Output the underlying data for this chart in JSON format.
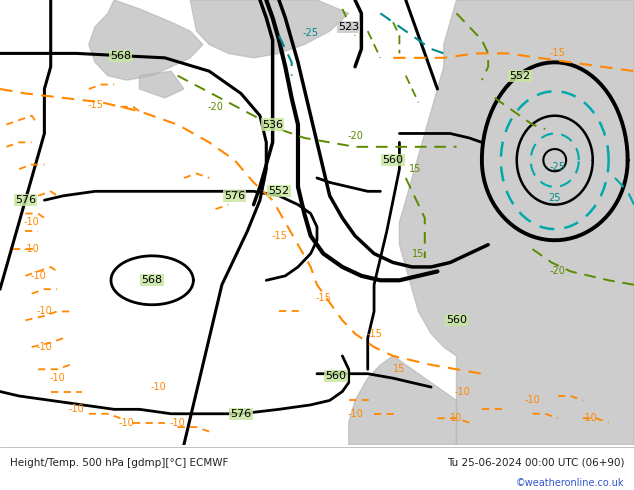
{
  "title_left": "Height/Temp. 500 hPa [gdmp][°C] ECMWF",
  "title_right": "Tu 25-06-2024 00:00 UTC (06+90)",
  "credit": "©weatheronline.co.uk",
  "bg_color": "#c8e6a0",
  "sea_color": "#c8c8c8",
  "bottom_bar_color": "#d8d8d8",
  "figsize": [
    6.34,
    4.9
  ],
  "dpi": 100
}
